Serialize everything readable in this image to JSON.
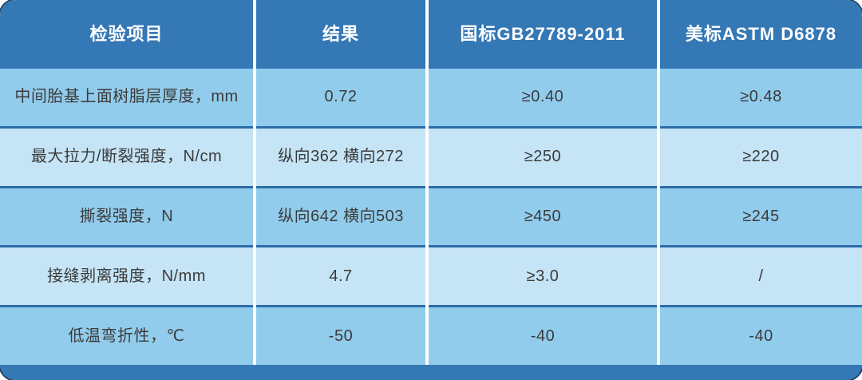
{
  "table": {
    "headers": [
      "检验项目",
      "结果",
      "国标GB27789-2011",
      "美标ASTM D6878"
    ],
    "rows": [
      [
        "中间胎基上面树脂层厚度，mm",
        "0.72",
        "≥0.40",
        "≥0.48"
      ],
      [
        "最大拉力/断裂强度，N/cm",
        "纵向362 横向272",
        "≥250",
        "≥220"
      ],
      [
        "撕裂强度，N",
        "纵向642 横向503",
        "≥450",
        "≥245"
      ],
      [
        "接缝剥离强度，N/mm",
        "4.7",
        "≥3.0",
        "/"
      ],
      [
        "低温弯折性，℃",
        "-50",
        "-40",
        "-40"
      ]
    ],
    "colors": {
      "header_bg": "#3478b5",
      "header_text": "#ffffff",
      "row_odd_bg": "#92ccec",
      "row_even_bg": "#c5e4f6",
      "separator": "#2d6ca8",
      "gap": "#ffffff",
      "footer_bg": "#3478b5",
      "cell_text": "#3b3b3b",
      "corner_outline": "#1d3f66"
    }
  }
}
